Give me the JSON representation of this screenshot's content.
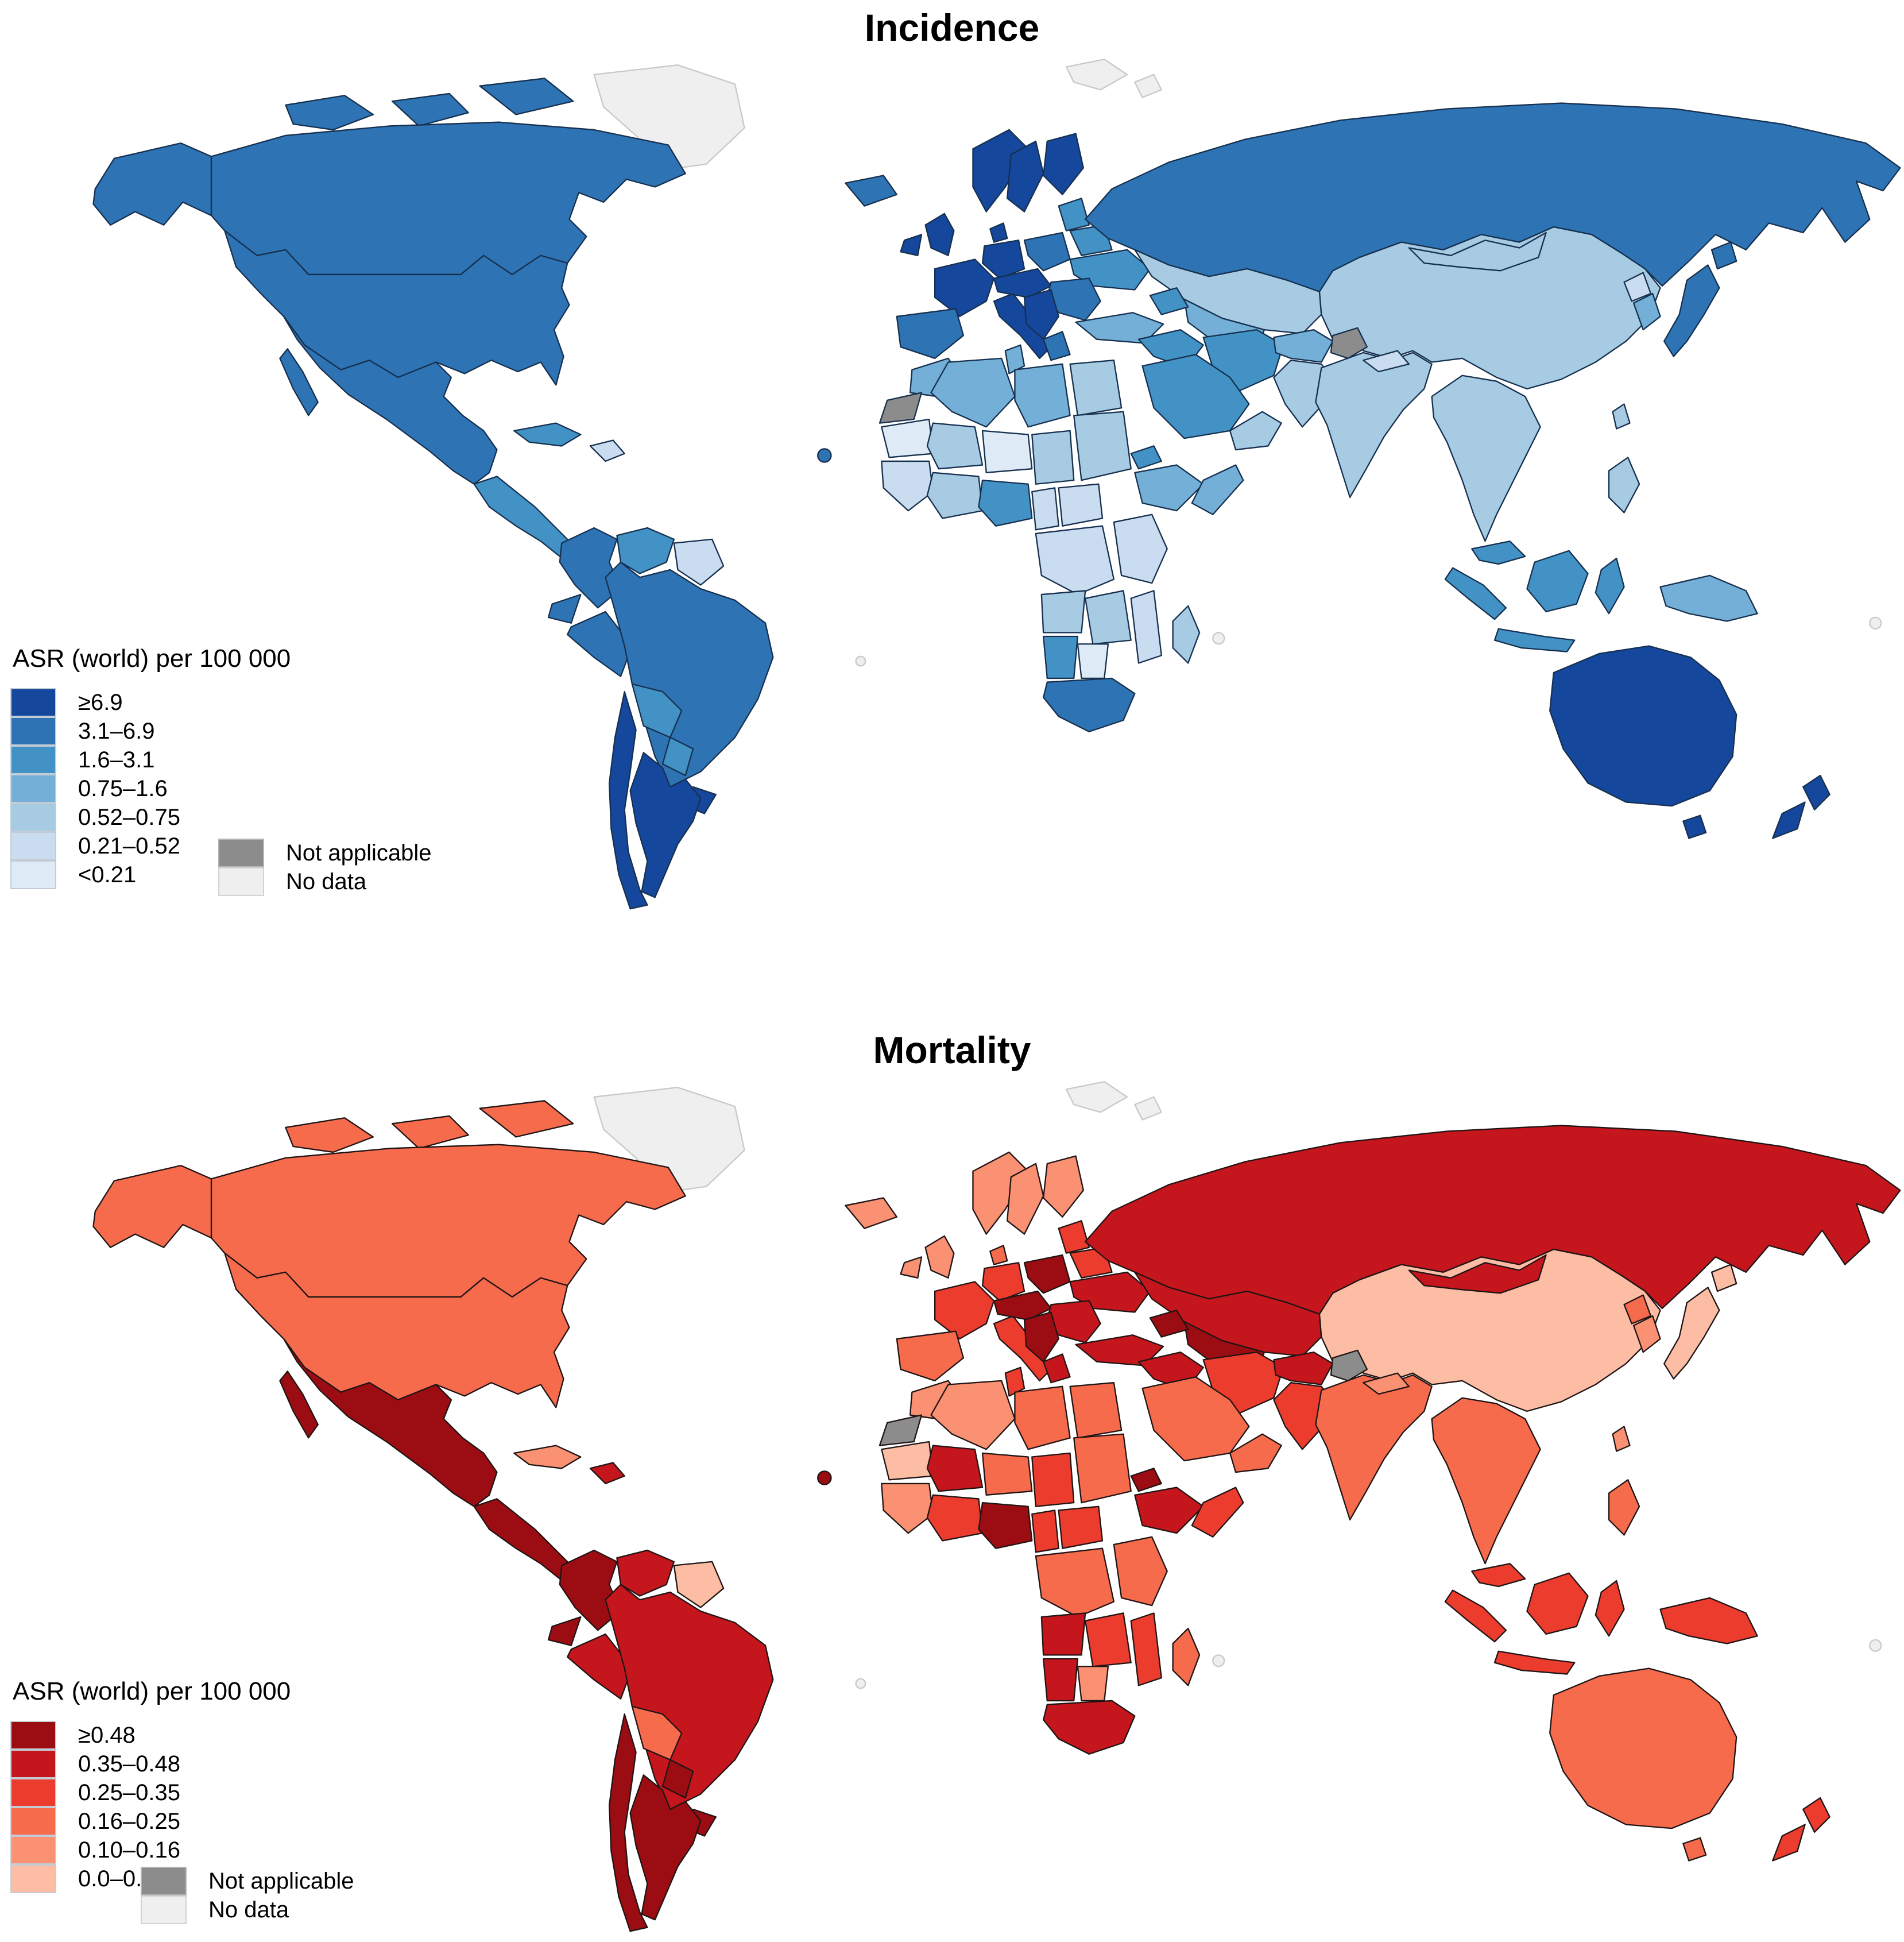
{
  "maps": [
    {
      "id": "incidence",
      "key": "inc",
      "title": "Incidence",
      "legend_title": "ASR (world) per 100 000",
      "classes": [
        "≥6.9",
        "3.1–6.9",
        "1.6–3.1",
        "0.75–1.6",
        "0.52–0.75",
        "0.21–0.52",
        "<0.21"
      ],
      "palette": [
        "#15479d",
        "#2e74b5",
        "#4392c6",
        "#73afd7",
        "#a6cbe3",
        "#c9dcf0",
        "#deeaf6"
      ],
      "not_applicable": {
        "label": "Not applicable",
        "color": "#8c8c8c"
      },
      "no_data": {
        "label": "No data",
        "color": "#efefef"
      },
      "border_color": "#16304f",
      "no_data_border": "#c9c9c9"
    },
    {
      "id": "mortality",
      "key": "mort",
      "title": "Mortality",
      "legend_title": "ASR (world) per 100 000",
      "classes": [
        "≥0.48",
        "0.35–0.48",
        "0.25–0.35",
        "0.16–0.25",
        "0.10–0.16",
        "0.0–0.10"
      ],
      "palette": [
        "#9b0d12",
        "#c4161c",
        "#eb3c2e",
        "#f76b4d",
        "#fa9173",
        "#fcbda4"
      ],
      "not_applicable": {
        "label": "Not applicable",
        "color": "#8c8c8c"
      },
      "no_data": {
        "label": "No data",
        "color": "#efefef"
      },
      "border_color": "#201414",
      "no_data_border": "#c9c9c9"
    }
  ],
  "regions": {
    "greenland": {
      "inc": "nd",
      "mort": "nd"
    },
    "svalbard1": {
      "inc": "nd",
      "mort": "nd"
    },
    "svalbard2": {
      "inc": "nd",
      "mort": "nd"
    },
    "arctic1": {
      "inc": 1,
      "mort": 3
    },
    "arctic2": {
      "inc": 1,
      "mort": 3
    },
    "arctic3": {
      "inc": 1,
      "mort": 3
    },
    "alaska": {
      "inc": 1,
      "mort": 3
    },
    "canada": {
      "inc": 1,
      "mort": 3
    },
    "usa": {
      "inc": 1,
      "mort": 3
    },
    "mexico": {
      "inc": 1,
      "mort": 0
    },
    "central_america": {
      "inc": 2,
      "mort": 0
    },
    "cuba": {
      "inc": 2,
      "mort": 4
    },
    "hispaniola": {
      "inc": 5,
      "mort": 1
    },
    "cape_verde": {
      "inc": 1,
      "mort": 0
    },
    "colombia": {
      "inc": 1,
      "mort": 0
    },
    "venezuela": {
      "inc": 2,
      "mort": 1
    },
    "guyanas": {
      "inc": 5,
      "mort": 5
    },
    "ecuador": {
      "inc": 1,
      "mort": 0
    },
    "peru": {
      "inc": 1,
      "mort": 1
    },
    "brazil": {
      "inc": 1,
      "mort": 1
    },
    "bolivia": {
      "inc": 2,
      "mort": 3
    },
    "paraguay": {
      "inc": 2,
      "mort": 0
    },
    "uruguay": {
      "inc": 0,
      "mort": 0
    },
    "argentina": {
      "inc": 0,
      "mort": 0
    },
    "chile": {
      "inc": 0,
      "mort": 0
    },
    "iceland": {
      "inc": 1,
      "mort": 4
    },
    "ireland": {
      "inc": 0,
      "mort": 4
    },
    "uk": {
      "inc": 0,
      "mort": 4
    },
    "norway": {
      "inc": 0,
      "mort": 4
    },
    "sweden": {
      "inc": 0,
      "mort": 4
    },
    "finland": {
      "inc": 0,
      "mort": 4
    },
    "denmark": {
      "inc": 0,
      "mort": 3
    },
    "germany": {
      "inc": 0,
      "mort": 2
    },
    "france": {
      "inc": 0,
      "mort": 2
    },
    "iberia": {
      "inc": 1,
      "mort": 3
    },
    "italy": {
      "inc": 0,
      "mort": 2
    },
    "central_europe": {
      "inc": 0,
      "mort": 0
    },
    "poland": {
      "inc": 1,
      "mort": 0
    },
    "baltics": {
      "inc": 2,
      "mort": 2
    },
    "belarus": {
      "inc": 2,
      "mort": 2
    },
    "ukraine": {
      "inc": 2,
      "mort": 1
    },
    "romania_bulgaria": {
      "inc": 1,
      "mort": 1
    },
    "balkans": {
      "inc": 0,
      "mort": 0
    },
    "greece": {
      "inc": 1,
      "mort": 1
    },
    "turkey": {
      "inc": 3,
      "mort": 1
    },
    "russia": {
      "inc": 1,
      "mort": 1
    },
    "kazakhstan": {
      "inc": 4,
      "mort": 1
    },
    "central_asia": {
      "inc": 3,
      "mort": 0
    },
    "caucasus": {
      "inc": 2,
      "mort": 0
    },
    "iraq_syria": {
      "inc": 2,
      "mort": 1
    },
    "iran": {
      "inc": 2,
      "mort": 2
    },
    "saudi": {
      "inc": 2,
      "mort": 3
    },
    "yemen_oman": {
      "inc": 4,
      "mort": 3
    },
    "afghanistan": {
      "inc": 3,
      "mort": 1
    },
    "pakistan": {
      "inc": 4,
      "mort": 2
    },
    "india": {
      "inc": 4,
      "mort": 3
    },
    "china": {
      "inc": 4,
      "mort": 5
    },
    "nepal": {
      "inc": 5,
      "mort": 4
    },
    "kashmir": {
      "inc": "na",
      "mort": "na"
    },
    "mongolia": {
      "inc": 4,
      "mort": 1
    },
    "n_korea": {
      "inc": 5,
      "mort": 3
    },
    "s_korea": {
      "inc": 3,
      "mort": 4
    },
    "japan_hokkaido": {
      "inc": 1,
      "mort": 5
    },
    "japan_honshu": {
      "inc": 1,
      "mort": 5
    },
    "taiwan": {
      "inc": 4,
      "mort": 4
    },
    "se_asia": {
      "inc": 4,
      "mort": 3
    },
    "malaysia": {
      "inc": 2,
      "mort": 2
    },
    "sumatra": {
      "inc": 2,
      "mort": 2
    },
    "java": {
      "inc": 2,
      "mort": 2
    },
    "borneo": {
      "inc": 2,
      "mort": 2
    },
    "sulawesi": {
      "inc": 2,
      "mort": 2
    },
    "new_guinea": {
      "inc": 3,
      "mort": 2
    },
    "philippines": {
      "inc": 4,
      "mort": 3
    },
    "morocco": {
      "inc": 3,
      "mort": 4
    },
    "western_sahara": {
      "inc": "na",
      "mort": "na"
    },
    "algeria": {
      "inc": 3,
      "mort": 4
    },
    "tunisia": {
      "inc": 3,
      "mort": 2
    },
    "libya": {
      "inc": 3,
      "mort": 3
    },
    "egypt": {
      "inc": 4,
      "mort": 3
    },
    "mauritania": {
      "inc": 6,
      "mort": 5
    },
    "mali": {
      "inc": 4,
      "mort": 1
    },
    "niger": {
      "inc": 6,
      "mort": 3
    },
    "chad": {
      "inc": 4,
      "mort": 2
    },
    "sudan": {
      "inc": 4,
      "mort": 3
    },
    "eritrea": {
      "inc": 2,
      "mort": 0
    },
    "ethiopia": {
      "inc": 3,
      "mort": 1
    },
    "somalia": {
      "inc": 3,
      "mort": 2
    },
    "west_africa": {
      "inc": 5,
      "mort": 4
    },
    "ghana_ivory": {
      "inc": 4,
      "mort": 2
    },
    "nigeria": {
      "inc": 2,
      "mort": 0
    },
    "cameroon": {
      "inc": 5,
      "mort": 2
    },
    "car": {
      "inc": 5,
      "mort": 2
    },
    "drc": {
      "inc": 5,
      "mort": 3
    },
    "east_africa": {
      "inc": 5,
      "mort": 3
    },
    "angola": {
      "inc": 4,
      "mort": 1
    },
    "zambia_zimbabwe": {
      "inc": 4,
      "mort": 2
    },
    "mozambique": {
      "inc": 5,
      "mort": 2
    },
    "namibia": {
      "inc": 2,
      "mort": 1
    },
    "botswana": {
      "inc": 6,
      "mort": 4
    },
    "south_africa": {
      "inc": 1,
      "mort": 1
    },
    "madagascar": {
      "inc": 4,
      "mort": 3
    },
    "australia": {
      "inc": 0,
      "mort": 3
    },
    "tasmania": {
      "inc": 0,
      "mort": 3
    },
    "nz_north": {
      "inc": 0,
      "mort": 2
    },
    "nz_south": {
      "inc": 0,
      "mort": 2
    },
    "nd_dot1": {
      "inc": "nd",
      "mort": "nd"
    },
    "nd_dot2": {
      "inc": "nd",
      "mort": "nd"
    },
    "nd_dot3": {
      "inc": "nd",
      "mort": "nd"
    }
  }
}
